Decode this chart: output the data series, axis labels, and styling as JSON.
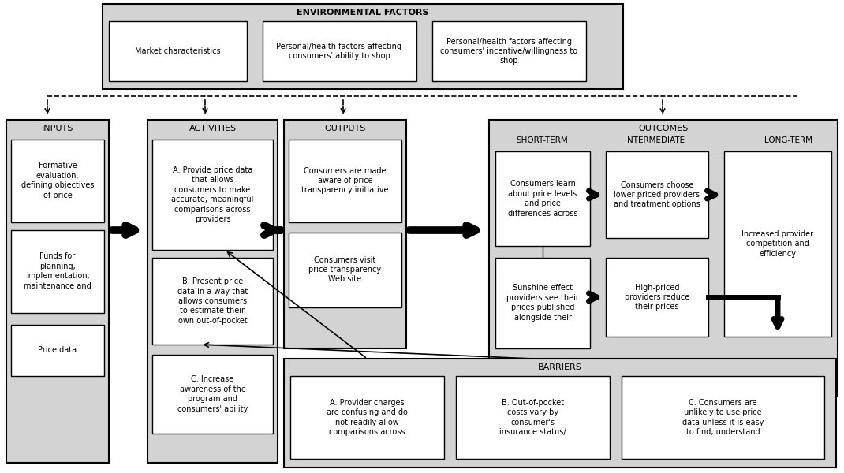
{
  "bg_color": "#ffffff",
  "box_fill": "#ffffff",
  "section_fill": "#d3d3d3",
  "env_fill": "#d3d3d3",
  "outcomes_fill": "#c8c8c8",
  "env_title": "ENVIRONMENTAL FACTORS",
  "env_box1": "Market characteristics",
  "env_box2": "Personal/health factors affecting\nconsumers' ability to shop",
  "env_box3": "Personal/health factors affecting\nconsumers' incentive/willingness to\nshop",
  "inputs_title": "INPUTS",
  "inputs_box1": "Formative\nevaluation,\ndefining objectives\nof price",
  "inputs_box2": "Funds for\nplanning,\nimplementation,\nmaintenance and",
  "inputs_box3": "Price data",
  "activities_title": "ACTIVITIES",
  "activities_box1": "A. Provide price data\nthat allows\nconsumers to make\naccurate, meaningful\ncomparisons across\nproviders",
  "activities_box2": "B. Present price\ndata in a way that\nallows consumers\nto estimate their\nown out-of-pocket",
  "activities_box3": "C. Increase\nawareness of the\nprogram and\nconsumers' ability",
  "outputs_title": "OUTPUTS",
  "outputs_box1": "Consumers are made\naware of price\ntransparency initiative",
  "outputs_box2": "Consumers visit\nprice transparency\nWeb site",
  "outcomes_title": "OUTCOMES",
  "shortterm_label": "SHORT-TERM",
  "intermediate_label": "INTERMEDIATE",
  "longterm_label": "LONG-TERM",
  "shortterm_box1": "Consumers learn\nabout price levels\nand price\ndifferences across",
  "shortterm_box2": "Sunshine effect\nproviders see their\nprices published\nalongside their",
  "intermediate_box1": "Consumers choose\nlower priced providers\nand treatment options",
  "intermediate_box2": "High-priced\nproviders reduce\ntheir prices",
  "longterm_box1": "Increased provider\ncompetition and\nefficiency",
  "barriers_title": "BARRIERS",
  "barriers_box1": "A. Provider charges\nare confusing and do\nnot readily allow\ncomparisons across",
  "barriers_box2": "B. Out-of-pocket\ncosts vary by\nconsumer's\ninsurance status/",
  "barriers_box3": "C. Consumers are\nunlikely to use price\ndata unless it is easy\nto find, understand"
}
